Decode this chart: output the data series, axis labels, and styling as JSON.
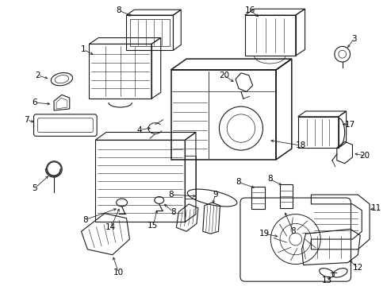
{
  "title": "",
  "background_color": "#ffffff",
  "line_color": "#1a1a1a",
  "text_color": "#000000",
  "figsize": [
    4.89,
    3.6
  ],
  "dpi": 100,
  "font_size": 7.5
}
